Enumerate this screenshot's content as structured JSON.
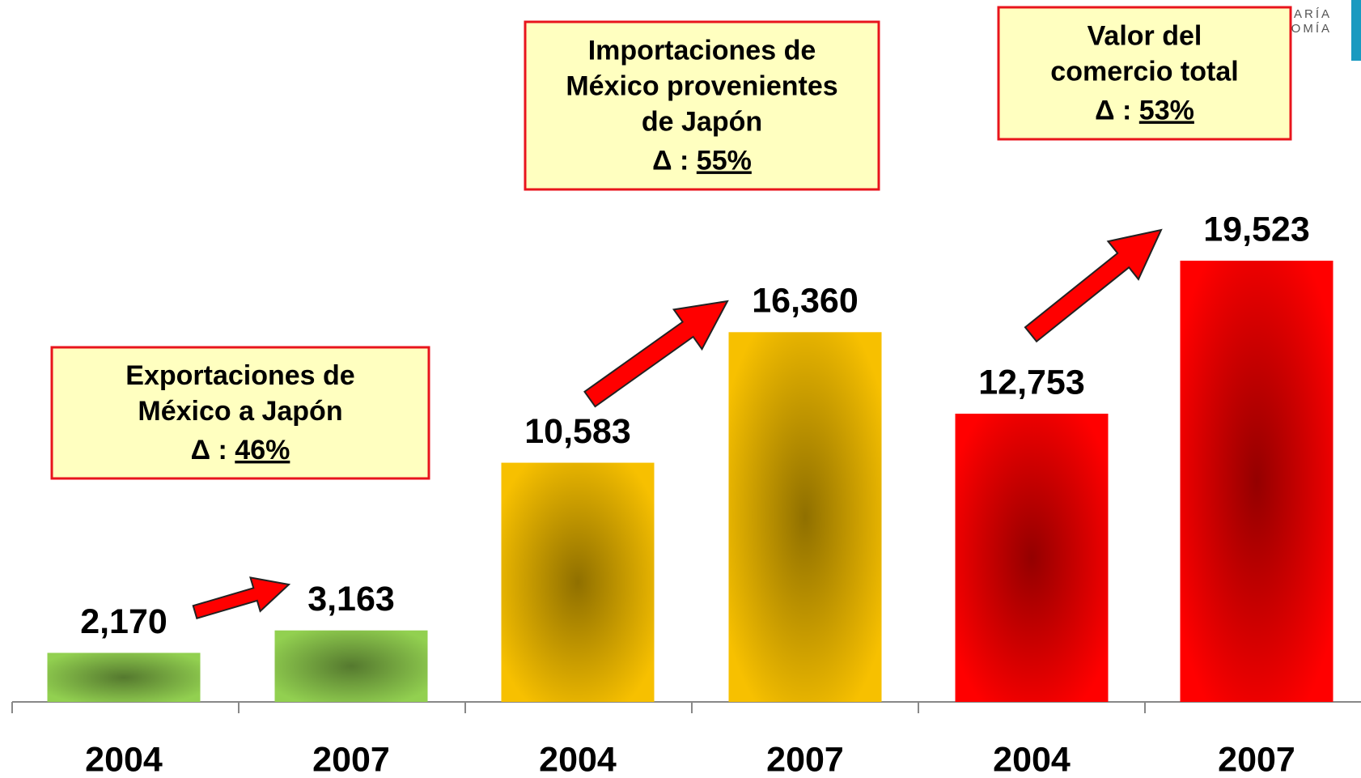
{
  "chart_data": {
    "type": "bar",
    "categories": [
      "2004",
      "2007",
      "2004",
      "2007",
      "2004",
      "2007"
    ],
    "values": [
      2170,
      3163,
      10583,
      16360,
      12753,
      19523
    ],
    "value_labels": [
      "2,170",
      "3,163",
      "10,583",
      "16,360",
      "12,753",
      "19,523"
    ],
    "colors": [
      "#92d050",
      "#92d050",
      "#f7c000",
      "#f7c000",
      "#ff0000",
      "#ff0000"
    ],
    "annotations": [
      {
        "lines": [
          "Exportaciones de",
          "México a Japón"
        ],
        "delta_label": "Δ :",
        "delta": "46%"
      },
      {
        "lines": [
          "Importaciones de",
          "México provenientes",
          "de Japón"
        ],
        "delta_label": "Δ :",
        "delta": "55%"
      },
      {
        "lines": [
          "Valor del",
          "comercio total"
        ],
        "delta_label": "Δ :",
        "delta": "53%"
      }
    ],
    "logo": [
      "ARÍA",
      "OMÍA"
    ]
  }
}
